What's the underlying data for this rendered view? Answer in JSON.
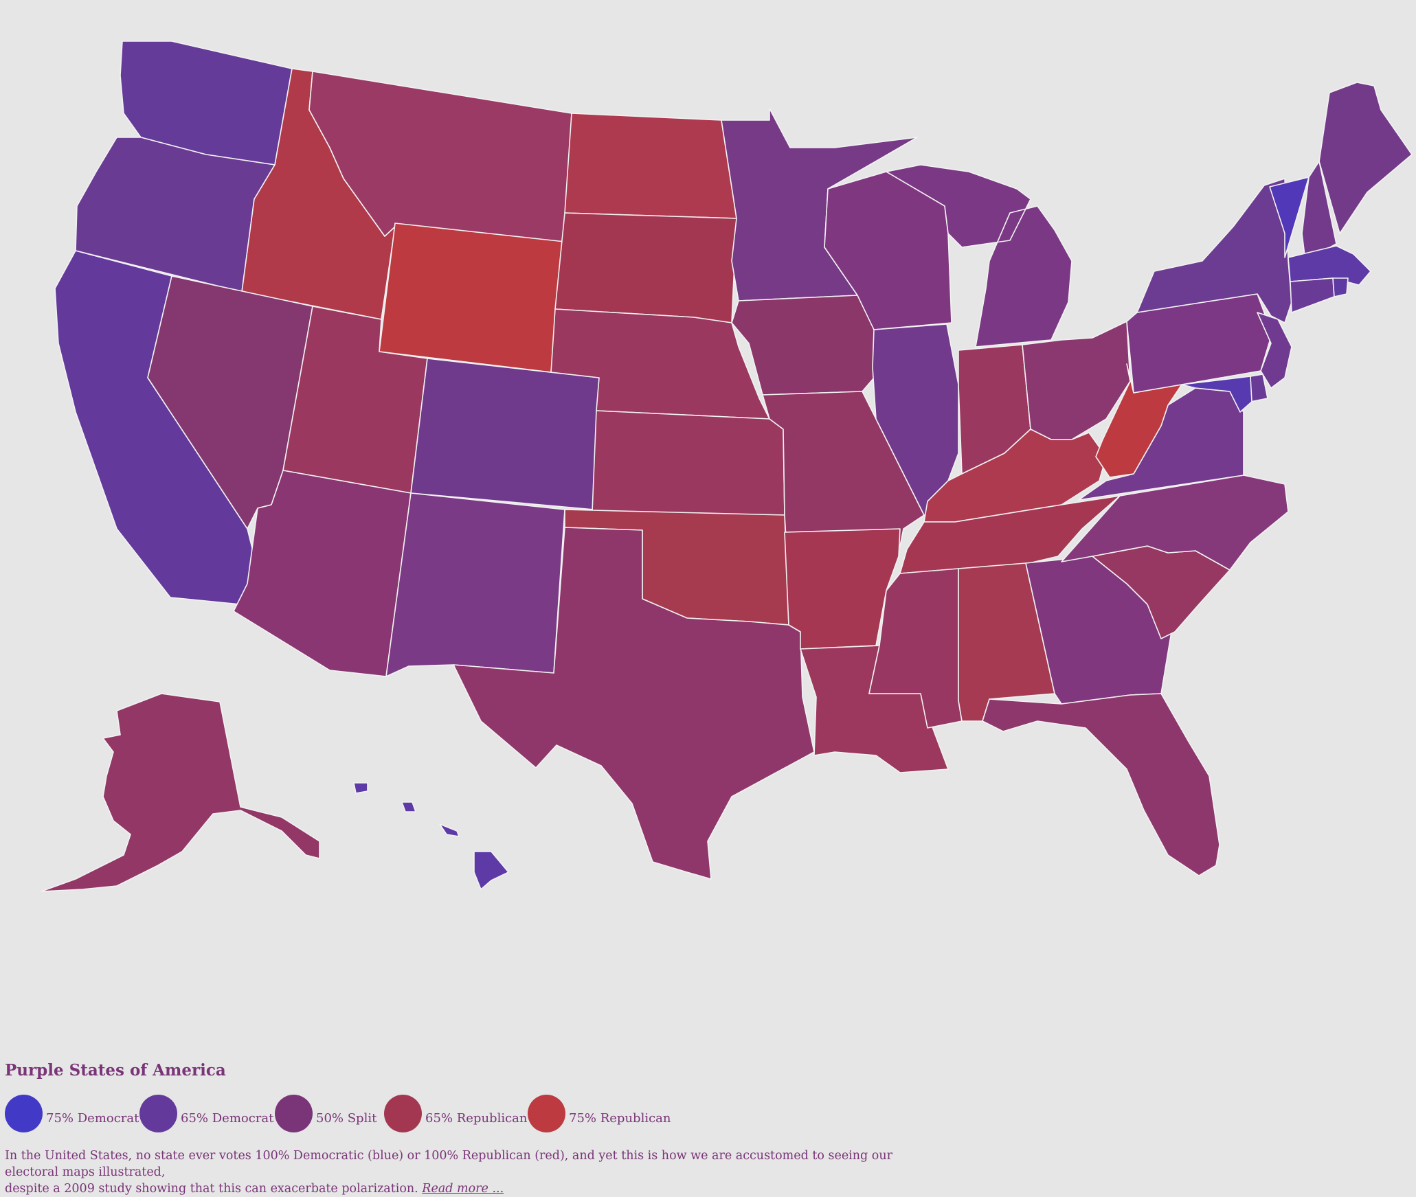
{
  "legend": {
    "title": "Purple States of America",
    "items": [
      {
        "label": "75% Democrat",
        "color": "#4239c6"
      },
      {
        "label": "65% Democrat",
        "color": "#633a9c"
      },
      {
        "label": "50% Split",
        "color": "#7a3478"
      },
      {
        "label": "65% Republican",
        "color": "#a33752"
      },
      {
        "label": "75% Republican",
        "color": "#bc3a40"
      }
    ]
  },
  "caption": {
    "text_line1": "In the United States, no state ever votes 100% Democratic (blue) or 100% Republican (red), and yet this is how we are accustomed to seeing our electoral maps illustrated,",
    "text_line2": "despite a 2009 study showing that this can exacerbate polarization.",
    "link": "Read more ..."
  },
  "states": [
    {
      "name": "Washington",
      "color": "#653b99"
    },
    {
      "name": "Oregon",
      "color": "#6a3b93"
    },
    {
      "name": "California",
      "color": "#633a9c"
    },
    {
      "name": "Idaho",
      "color": "#b03a4a"
    },
    {
      "name": "Nevada",
      "color": "#85386f"
    },
    {
      "name": "Montana",
      "color": "#9b3a64"
    },
    {
      "name": "Wyoming",
      "color": "#bc3a40"
    },
    {
      "name": "Utah",
      "color": "#9b385f"
    },
    {
      "name": "Arizona",
      "color": "#8a3672"
    },
    {
      "name": "Colorado",
      "color": "#6f3a8c"
    },
    {
      "name": "New Mexico",
      "color": "#7a3a85"
    },
    {
      "name": "North Dakota",
      "color": "#ae3a4f"
    },
    {
      "name": "South Dakota",
      "color": "#a33752"
    },
    {
      "name": "Nebraska",
      "color": "#9a385f"
    },
    {
      "name": "Kansas",
      "color": "#9a385f"
    },
    {
      "name": "Oklahoma",
      "color": "#a63a4f"
    },
    {
      "name": "Texas",
      "color": "#8f376a"
    },
    {
      "name": "Minnesota",
      "color": "#763a86"
    },
    {
      "name": "Iowa",
      "color": "#8b376a"
    },
    {
      "name": "Missouri",
      "color": "#933765"
    },
    {
      "name": "Arkansas",
      "color": "#a53753"
    },
    {
      "name": "Louisiana",
      "color": "#9c385d"
    },
    {
      "name": "Wisconsin",
      "color": "#7f3780"
    },
    {
      "name": "Illinois",
      "color": "#713a8c"
    },
    {
      "name": "Michigan",
      "color": "#7b3884"
    },
    {
      "name": "Indiana",
      "color": "#9b385f"
    },
    {
      "name": "Ohio",
      "color": "#8b3770"
    },
    {
      "name": "Kentucky",
      "color": "#ad3a4f"
    },
    {
      "name": "Tennessee",
      "color": "#a53753"
    },
    {
      "name": "Mississippi",
      "color": "#983862"
    },
    {
      "name": "Alabama",
      "color": "#a63a52"
    },
    {
      "name": "Georgia",
      "color": "#80377d"
    },
    {
      "name": "Florida",
      "color": "#8d376d"
    },
    {
      "name": "South Carolina",
      "color": "#963862"
    },
    {
      "name": "North Carolina",
      "color": "#85387a"
    },
    {
      "name": "Virginia",
      "color": "#733a8d"
    },
    {
      "name": "West Virginia",
      "color": "#bc3a40"
    },
    {
      "name": "Pennsylvania",
      "color": "#7c3884"
    },
    {
      "name": "New York",
      "color": "#6c3b92"
    },
    {
      "name": "Vermont",
      "color": "#5038b8"
    },
    {
      "name": "New Hampshire",
      "color": "#733a8b"
    },
    {
      "name": "Maine",
      "color": "#743a8a"
    },
    {
      "name": "Massachusetts",
      "color": "#5d3aa6"
    },
    {
      "name": "Connecticut",
      "color": "#6a3b96"
    },
    {
      "name": "Rhode Island",
      "color": "#5f3aa2"
    },
    {
      "name": "New Jersey",
      "color": "#6f3a90"
    },
    {
      "name": "Delaware",
      "color": "#6a3b96"
    },
    {
      "name": "Maryland",
      "color": "#573aaf"
    },
    {
      "name": "Alaska",
      "color": "#923766"
    },
    {
      "name": "Hawaii",
      "color": "#5d3aa6"
    }
  ]
}
